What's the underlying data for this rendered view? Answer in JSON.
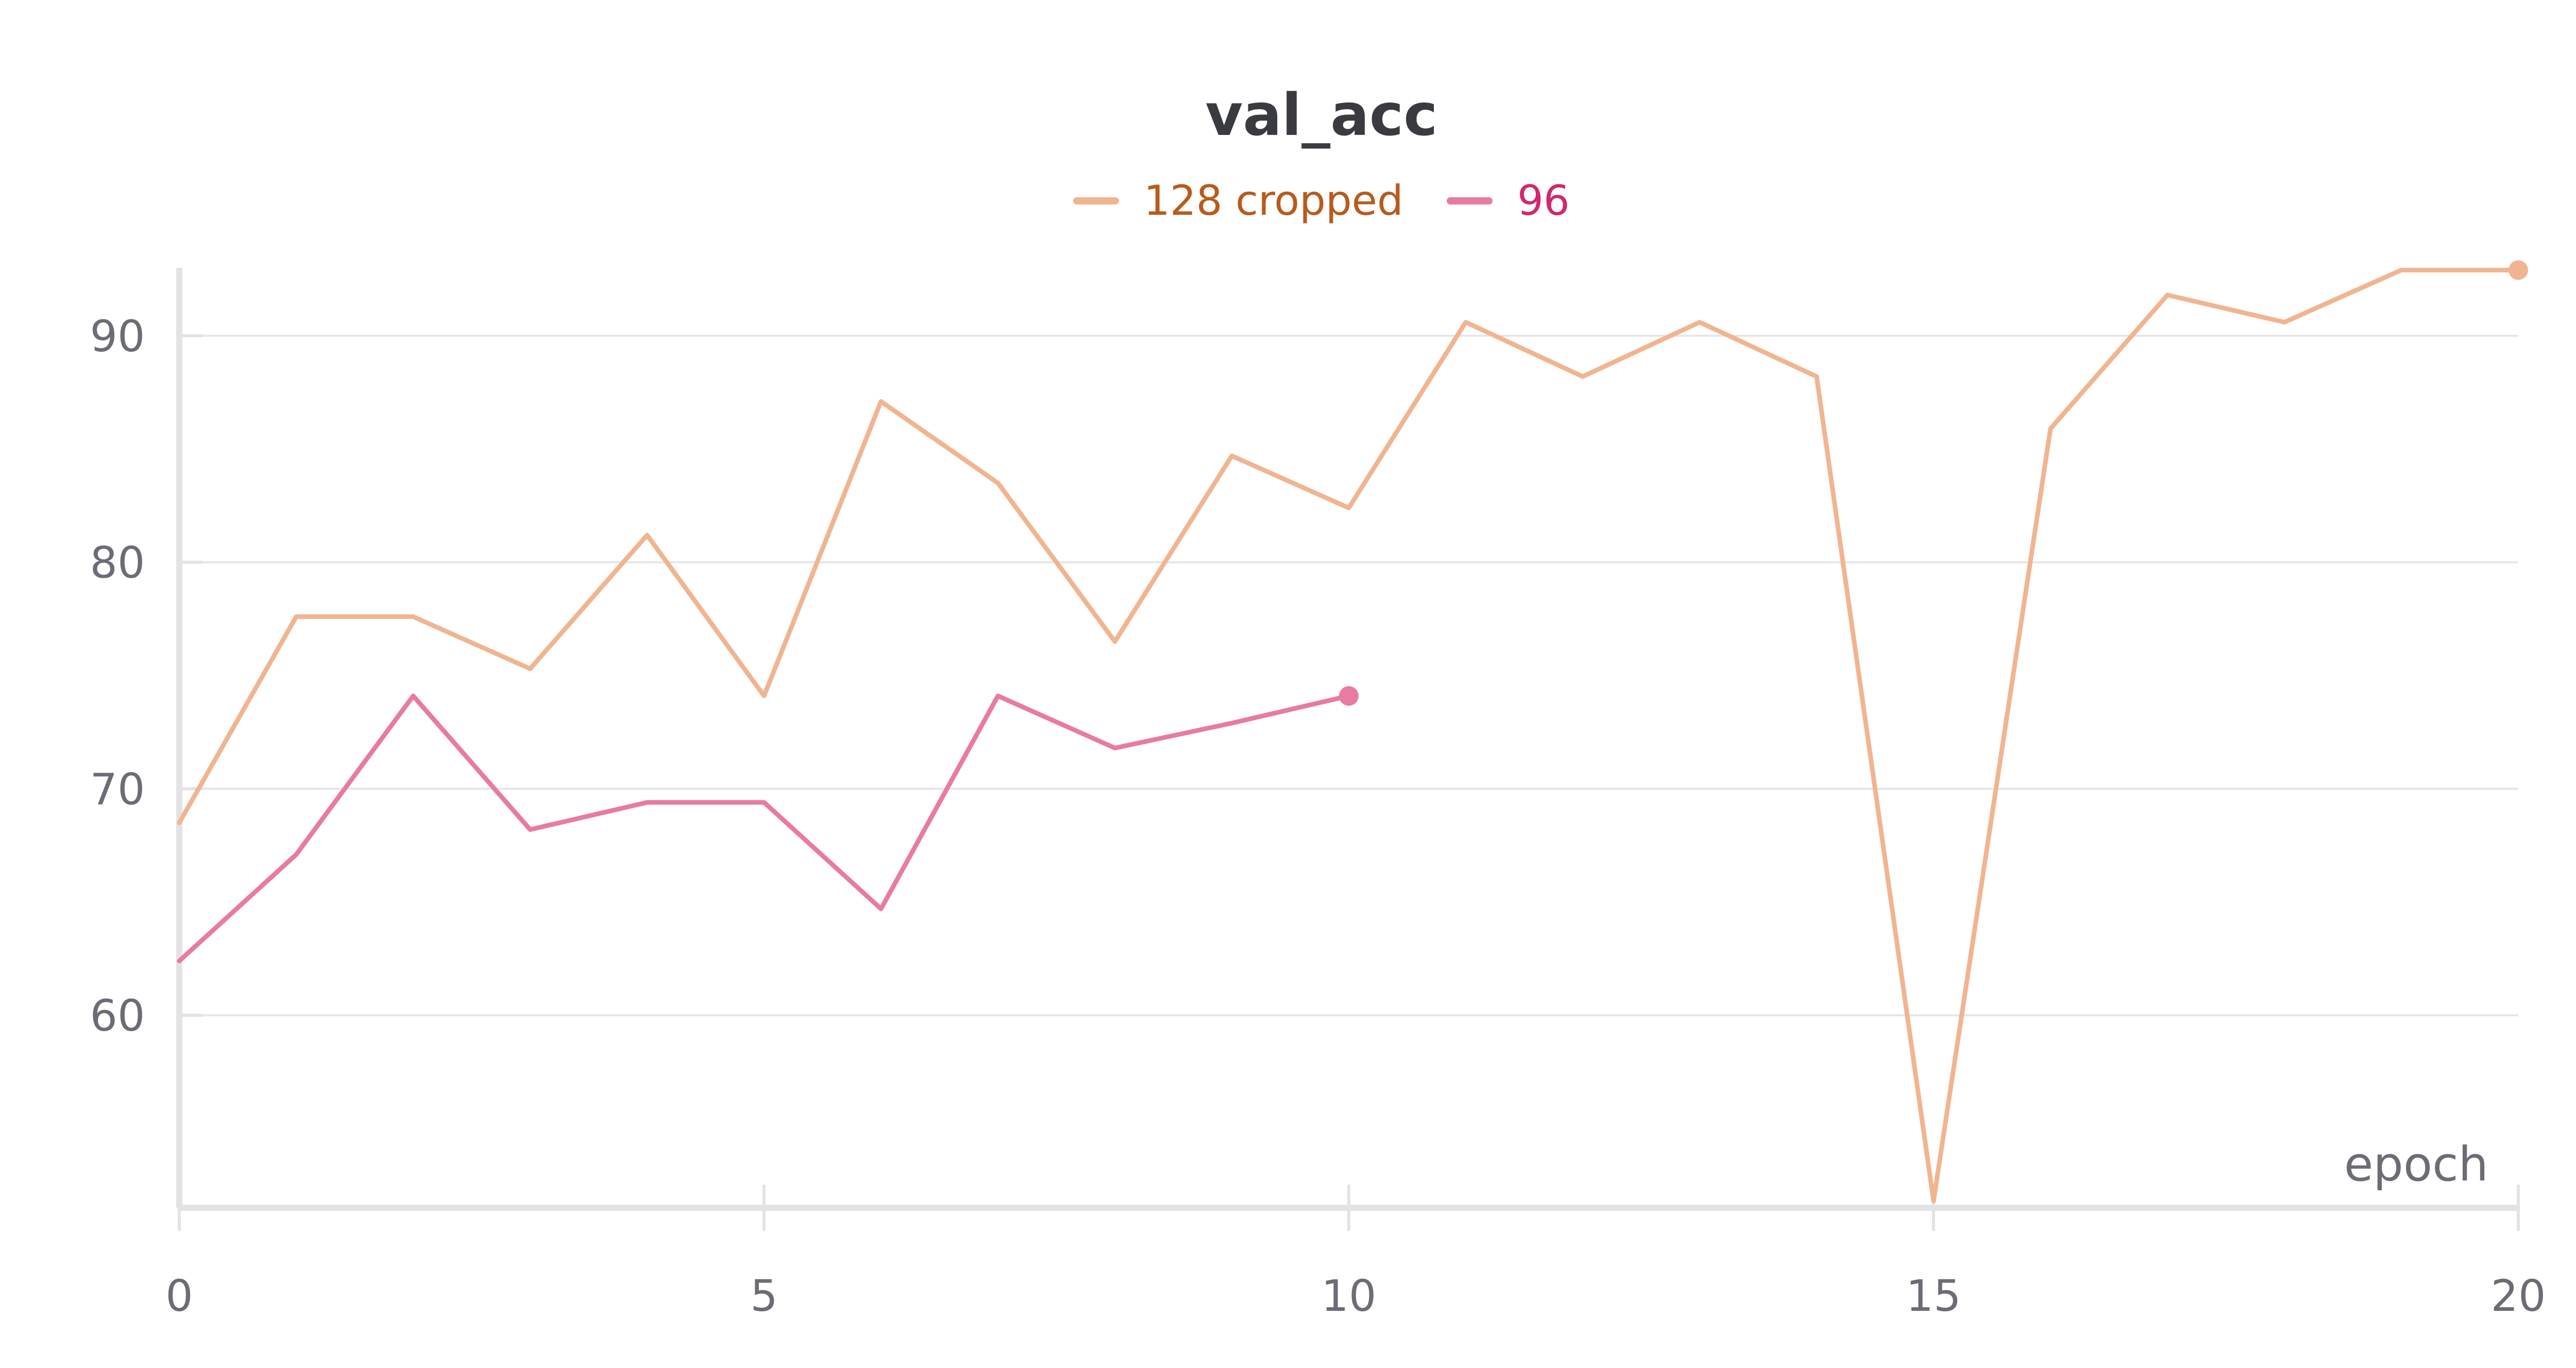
{
  "chart_data": {
    "type": "line",
    "title": "val_acc",
    "xlabel": "epoch",
    "ylabel": "",
    "xlim": [
      0,
      20
    ],
    "ylim": [
      51.5,
      93
    ],
    "x_ticks": [
      0,
      5,
      10,
      15,
      20
    ],
    "y_ticks": [
      60,
      70,
      80,
      90
    ],
    "grid": true,
    "legend_position": "top-center",
    "series": [
      {
        "name": "128 cropped",
        "color": "#f0b590",
        "label_color": "#b85b1c",
        "x": [
          0,
          1,
          2,
          3,
          4,
          5,
          6,
          7,
          8,
          9,
          10,
          11,
          12,
          13,
          14,
          15,
          16,
          17,
          18,
          19,
          20
        ],
        "values": [
          68.5,
          77.6,
          77.6,
          75.3,
          81.2,
          74.1,
          87.1,
          83.5,
          76.5,
          84.7,
          82.4,
          90.6,
          88.2,
          90.6,
          88.2,
          51.8,
          85.9,
          91.8,
          90.6,
          92.9,
          92.9
        ]
      },
      {
        "name": "96",
        "color": "#e87aa3",
        "label_color": "#d1276e",
        "x": [
          0,
          1,
          2,
          3,
          4,
          5,
          6,
          7,
          8,
          9,
          10
        ],
        "values": [
          62.4,
          67.1,
          74.1,
          68.2,
          69.4,
          69.4,
          64.7,
          74.1,
          71.8,
          72.9,
          74.1
        ]
      }
    ]
  }
}
